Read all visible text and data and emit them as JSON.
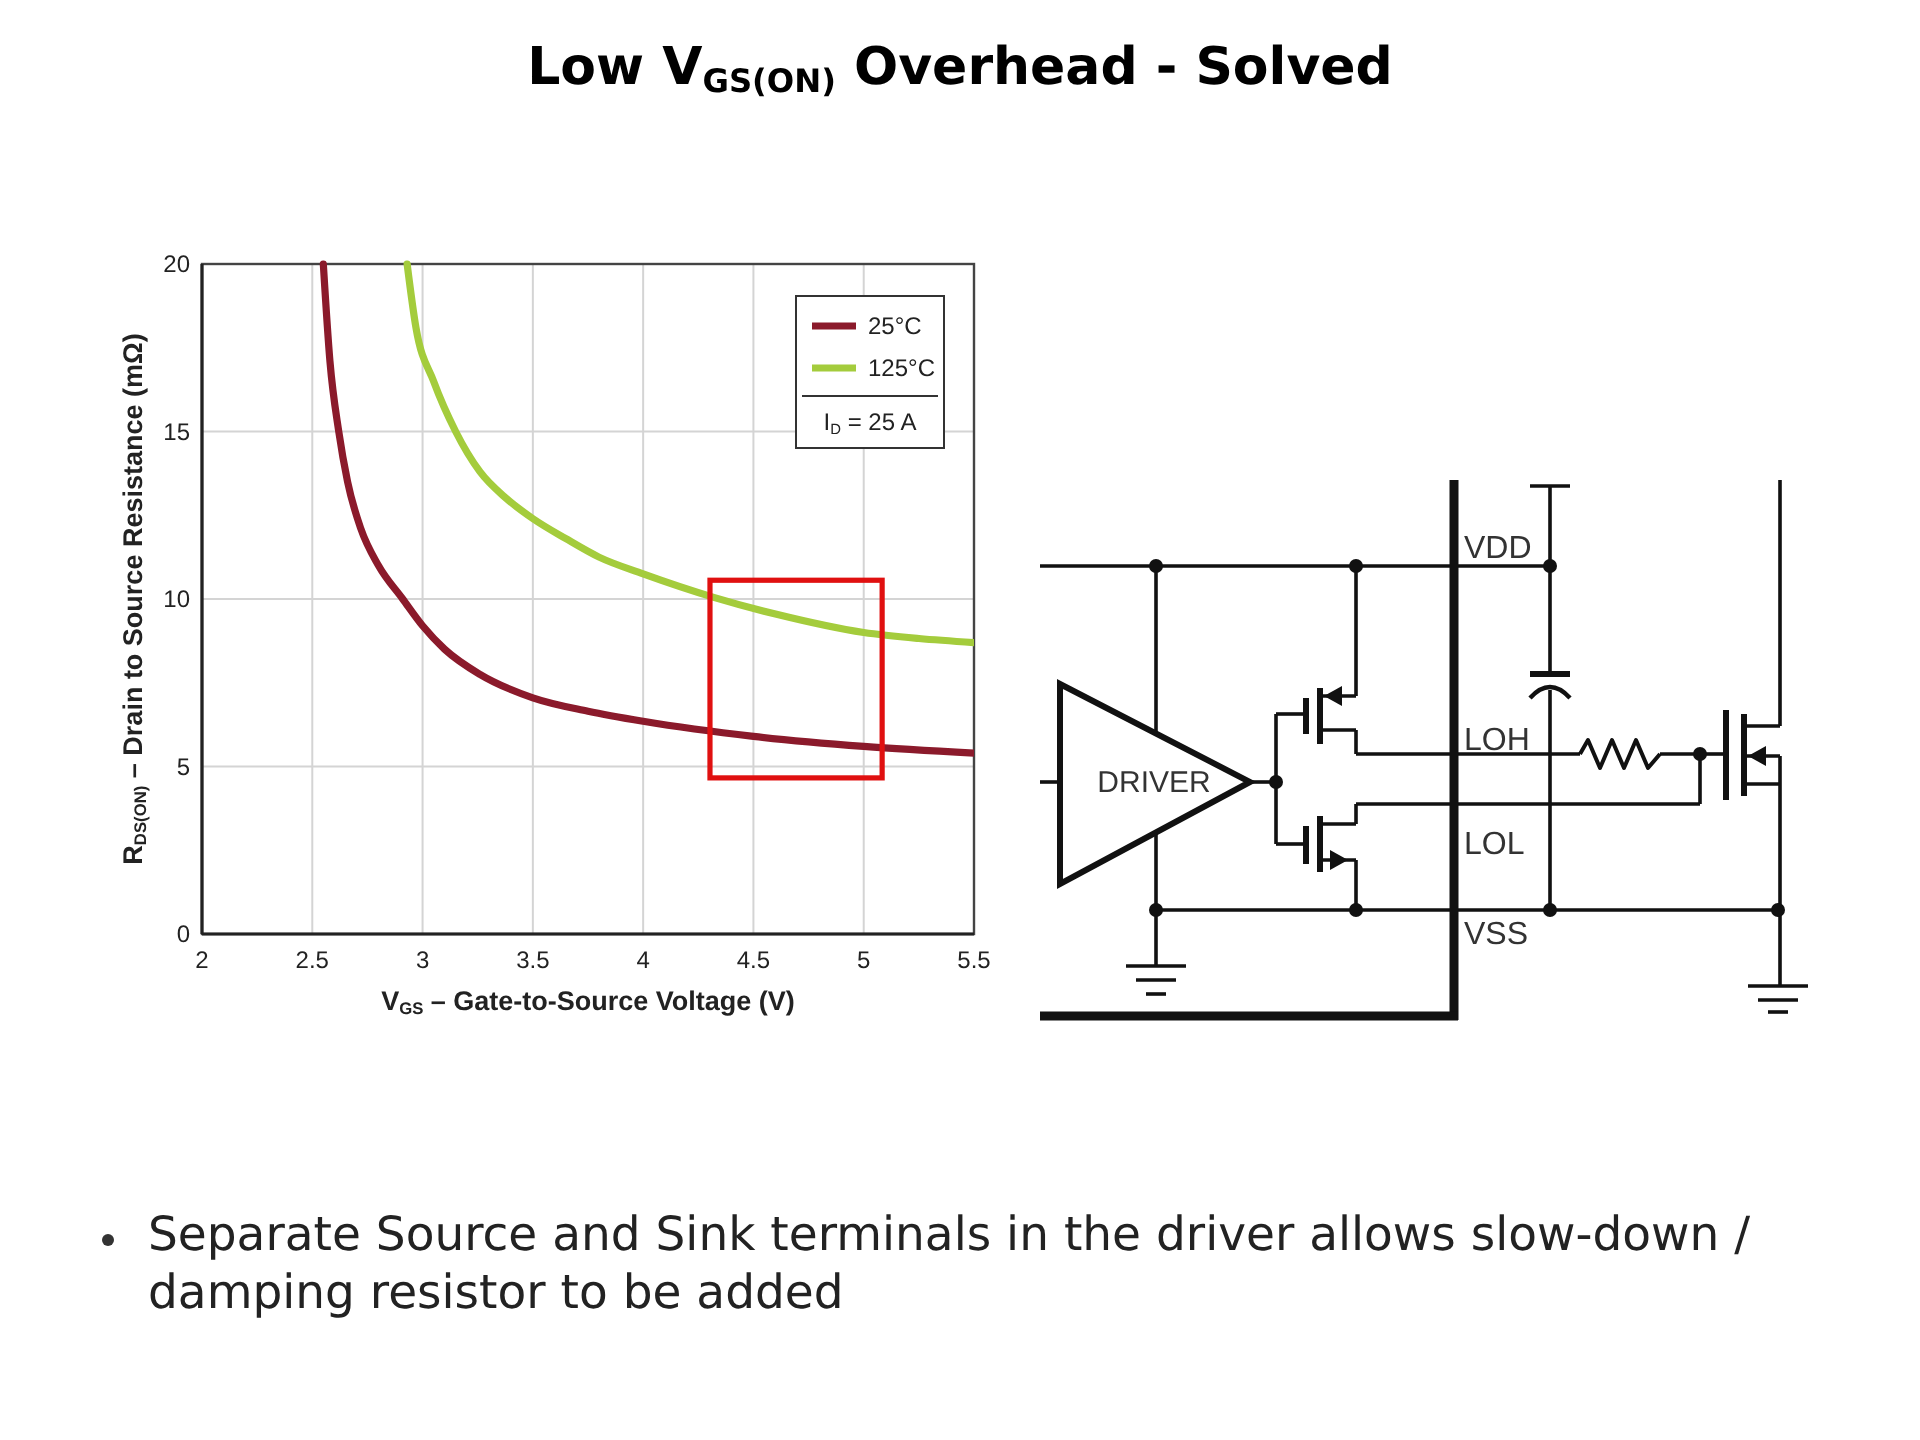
{
  "chart_data": [
    {
      "type": "line",
      "title": "Low V$_{GS(ON)}$ Overhead - Solved",
      "xlabel": "V$_{GS}$ – Gate-to-Source Voltage (V)",
      "ylabel": "R$_{DS(ON)}$ – Drain to Source Resistance (mΩ)",
      "series": [
        {
          "name": "25°C",
          "color": "#8b1a2b",
          "x": [
            2.55,
            2.58,
            2.62,
            2.66,
            2.72,
            2.8,
            2.91,
            3.0,
            3.1,
            3.26,
            3.5,
            3.75,
            4.0,
            4.5,
            5.0,
            5.5
          ],
          "values": [
            20,
            17.1,
            15,
            13.5,
            12.1,
            11,
            10,
            9.2,
            8.5,
            7.75,
            7.05,
            6.65,
            6.35,
            5.9,
            5.6,
            5.4
          ]
        },
        {
          "name": "125°C",
          "color": "#a4cc3c",
          "x": [
            2.93,
            2.97,
            3.05,
            3.15,
            3.26,
            3.38,
            3.5,
            3.65,
            3.8,
            4.0,
            4.32,
            4.6,
            5.0,
            5.25,
            5.5
          ],
          "values": [
            20,
            18.1,
            16.5,
            15,
            13.8,
            13,
            12.4,
            11.8,
            11.25,
            10.75,
            10.05,
            9.55,
            9.0,
            8.82,
            8.7
          ]
        }
      ],
      "xlim": [
        2,
        5.5
      ],
      "xticks": [
        2,
        2.5,
        3,
        3.5,
        4,
        4.5,
        5,
        5.5
      ],
      "ylim": [
        0,
        20
      ],
      "yticks": [
        0,
        5,
        10,
        15,
        20
      ],
      "grid": true,
      "legend": "top right",
      "annotations": [
        "I$_{D}$ = 25 A",
        "Separate Source and Sink terminals in the driver allows slow-down / damping resistor to be added"
      ]
    },
    {
      "type": "other",
      "annotations": [
        "VDD",
        "LOH",
        "DRIVER",
        "LOL",
        "VSS"
      ]
    }
  ]
}
